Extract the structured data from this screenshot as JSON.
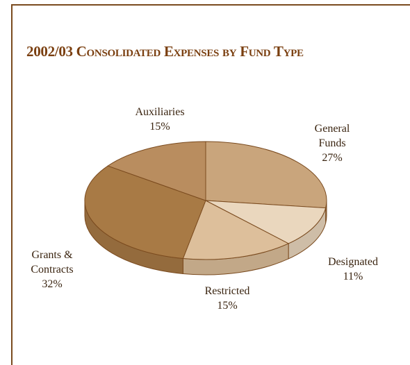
{
  "chart_data": {
    "type": "pie",
    "title": "2002/03 Consolidated Expenses by Fund Type",
    "slices": [
      {
        "name": "General Funds",
        "label_lines": [
          "General",
          "Funds"
        ],
        "value": 27,
        "value_label": "27%",
        "color": "#c9a57c"
      },
      {
        "name": "Designated",
        "label_lines": [
          "Designated"
        ],
        "value": 11,
        "value_label": "11%",
        "color": "#ead7be"
      },
      {
        "name": "Restricted",
        "label_lines": [
          "Restricted"
        ],
        "value": 15,
        "value_label": "15%",
        "color": "#ddbf9b"
      },
      {
        "name": "Grants & Contracts",
        "label_lines": [
          "Grants &",
          "Contracts"
        ],
        "value": 32,
        "value_label": "32%",
        "color": "#a87a45"
      },
      {
        "name": "Auxiliaries",
        "label_lines": [
          "Auxiliaries"
        ],
        "value": 15,
        "value_label": "15%",
        "color": "#b98d5f"
      }
    ],
    "style": "3d",
    "outline_color": "#7a4a1e"
  }
}
